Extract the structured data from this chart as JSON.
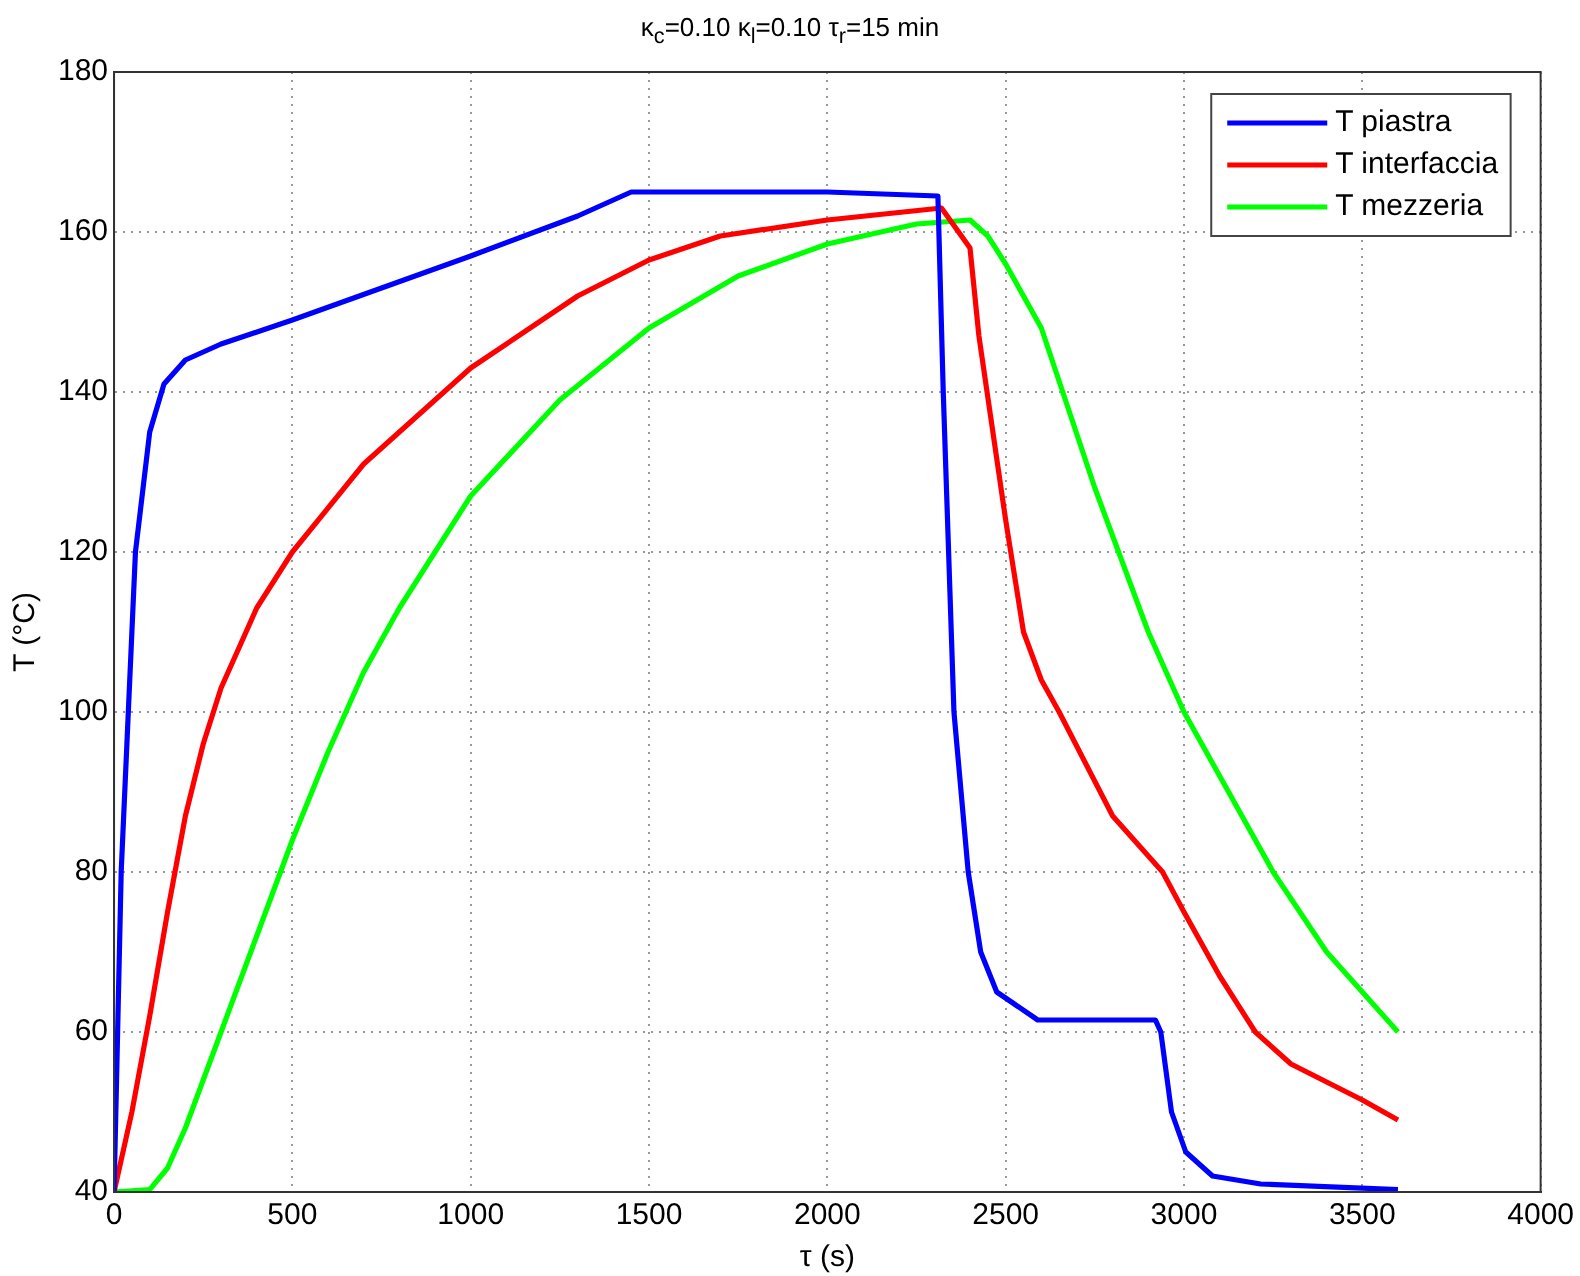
{
  "chart_data": {
    "type": "line",
    "title": "κ$_{c}$=0.10 κ$_{l}$=0.10 τ$_{r}$=15 min",
    "xlabel": "τ (s)",
    "ylabel": "T (°C)",
    "xlim": [
      0,
      4000
    ],
    "xticks": [
      0,
      500,
      1000,
      1500,
      2000,
      2500,
      3000,
      3500,
      4000
    ],
    "ylim": [
      40,
      180
    ],
    "yticks": [
      40,
      60,
      80,
      100,
      120,
      140,
      160,
      180
    ],
    "grid": true,
    "legend": "top right",
    "marker": "none",
    "line_style": "solid",
    "series": [
      {
        "name": "T piastra",
        "color": "#0000ff",
        "x": [
          0,
          10,
          20,
          40,
          60,
          100,
          140,
          200,
          300,
          500,
          1000,
          1300,
          1450,
          1500,
          2000,
          2310,
          2325,
          2340,
          2355,
          2395,
          2430,
          2475,
          2590,
          2900,
          2920,
          2935,
          2965,
          3005,
          3080,
          3215,
          3600
        ],
        "values": [
          40,
          60,
          80,
          100,
          120,
          135,
          141,
          144,
          146,
          149,
          157,
          162,
          165,
          165,
          165,
          164.5,
          140,
          120,
          100,
          80,
          70,
          65,
          61.5,
          61.5,
          61.5,
          60,
          50,
          45,
          42,
          41,
          40.3
        ]
      },
      {
        "name": "T interfaccia",
        "color": "#ff0000",
        "x": [
          0,
          50,
          100,
          150,
          200,
          250,
          300,
          400,
          500,
          700,
          1000,
          1300,
          1500,
          1700,
          2000,
          2320,
          2400,
          2425,
          2500,
          2550,
          2600,
          2650,
          2800,
          2940,
          3000,
          3100,
          3200,
          3300,
          3500,
          3600
        ],
        "values": [
          40,
          50,
          62,
          75,
          87,
          96,
          103,
          113,
          120,
          131,
          143,
          152,
          156.5,
          159.5,
          161.5,
          163,
          158,
          147,
          124,
          110,
          104,
          100,
          87,
          80,
          75,
          67,
          60,
          56,
          51.5,
          49
        ]
      },
      {
        "name": "T mezzeria",
        "color": "#00ff00",
        "x": [
          0,
          100,
          150,
          200,
          250,
          300,
          400,
          500,
          600,
          700,
          800,
          1000,
          1250,
          1500,
          1750,
          2000,
          2250,
          2400,
          2450,
          2500,
          2600,
          2750,
          2900,
          3000,
          3100,
          3250,
          3400,
          3600
        ],
        "values": [
          40,
          40.3,
          43,
          48,
          54,
          60,
          72,
          84,
          95,
          105,
          113,
          127,
          139,
          148,
          154.5,
          158.5,
          161,
          161.5,
          159.5,
          156,
          148,
          128,
          110,
          100,
          92,
          80,
          70,
          60
        ]
      }
    ]
  }
}
